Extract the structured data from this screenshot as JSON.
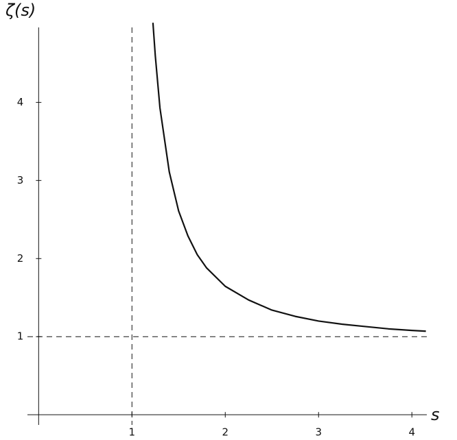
{
  "chart_data": {
    "type": "line",
    "x_label": "s",
    "y_label": "ζ(s)",
    "x": [
      1.225,
      1.25,
      1.3,
      1.4,
      1.5,
      1.6,
      1.7,
      1.8,
      2.0,
      2.25,
      2.5,
      2.75,
      3.0,
      3.25,
      3.5,
      3.75,
      4.0,
      4.15
    ],
    "series": [
      {
        "color": "#111111",
        "values": [
          5.02,
          4.6,
          3.93,
          3.11,
          2.61,
          2.29,
          2.05,
          1.88,
          1.645,
          1.47,
          1.34,
          1.26,
          1.2,
          1.16,
          1.13,
          1.1,
          1.08,
          1.07
        ]
      }
    ],
    "reference_lines": {
      "x": 1,
      "y": 1
    },
    "xlim": [
      -0.12,
      4.16
    ],
    "ylim": [
      -0.13,
      4.96
    ],
    "xticks": [
      1,
      2,
      3,
      4
    ],
    "yticks": [
      1,
      2,
      3,
      4
    ]
  }
}
